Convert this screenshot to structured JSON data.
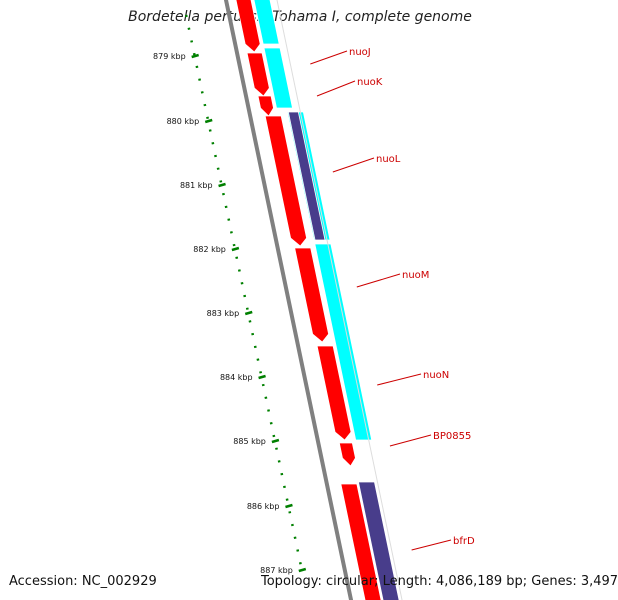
{
  "title": "Bordetella pertussis Tohama I, complete genome",
  "footer": {
    "accession": "Accession: NC_002929",
    "summary": "Topology: circular; Length: 4,086,189 bp; Genes: 3,497"
  },
  "colors": {
    "forward_cds": "#ff0000",
    "reverse_cds": "#00ffff",
    "other_feature": "#483d8b",
    "backbone": "#808080",
    "ticks": "#008000",
    "gene_label": "#cc0000"
  },
  "tick_labels": [
    "879 kbp",
    "880 kbp",
    "881 kbp",
    "882 kbp",
    "883 kbp",
    "884 kbp",
    "885 kbp",
    "886 kbp",
    "887 kbp"
  ],
  "genes": [
    "nuoJ",
    "nuoK",
    "nuoL",
    "nuoM",
    "nuoN",
    "BP0855",
    "bfrD"
  ]
}
